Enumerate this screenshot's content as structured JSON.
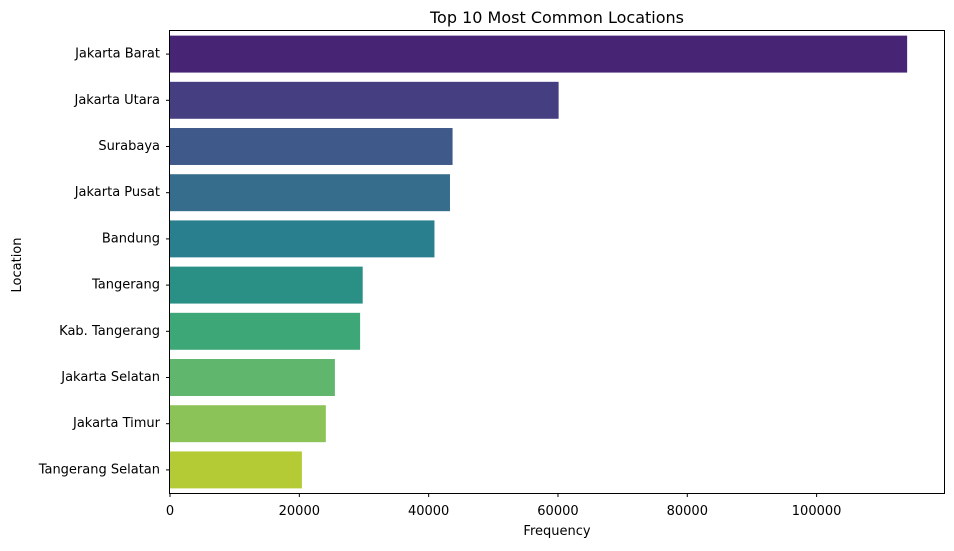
{
  "chart_data": {
    "type": "bar",
    "orientation": "horizontal",
    "title": "Top 10 Most Common Locations",
    "xlabel": "Frequency",
    "ylabel": "Location",
    "categories": [
      "Jakarta Barat",
      "Jakarta Utara",
      "Surabaya",
      "Jakarta Pusat",
      "Bandung",
      "Tangerang",
      "Kab. Tangerang",
      "Jakarta Selatan",
      "Jakarta Timur",
      "Tangerang Selatan"
    ],
    "values": [
      114000,
      60100,
      43700,
      43300,
      40900,
      29800,
      29400,
      25500,
      24100,
      20400
    ],
    "colors": [
      "#482475",
      "#453f81",
      "#3f5a8a",
      "#366d8c",
      "#2a7f8e",
      "#2a8f84",
      "#3da777",
      "#60b66d",
      "#8cc358",
      "#b4cb35"
    ],
    "xlim": [
      0,
      120000
    ],
    "xticks": [
      0,
      20000,
      40000,
      60000,
      80000,
      100000
    ],
    "grid": false,
    "legend": "none"
  }
}
